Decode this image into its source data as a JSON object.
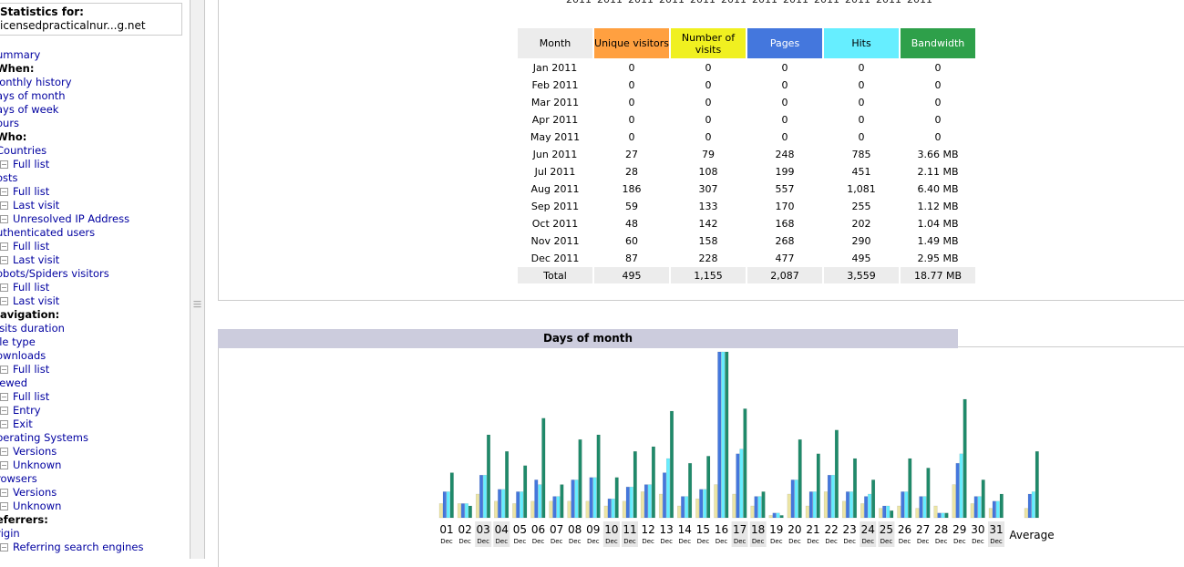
{
  "sidebar": {
    "stats_label": "Statistics for:",
    "site": "icensedpracticalnur...g.net",
    "menu": [
      {
        "text": "ummary",
        "type": "link"
      },
      {
        "text": "When:",
        "type": "head"
      },
      {
        "text": "lonthly history",
        "type": "link"
      },
      {
        "text": "ays of month",
        "type": "link"
      },
      {
        "text": "ays of week",
        "type": "link"
      },
      {
        "text": "ours",
        "type": "link"
      },
      {
        "text": "Who:",
        "type": "head"
      },
      {
        "text": "Countries",
        "type": "link"
      },
      {
        "text": "Full list",
        "type": "sub"
      },
      {
        "text": "osts",
        "type": "link"
      },
      {
        "text": "Full list",
        "type": "sub"
      },
      {
        "text": "Last visit",
        "type": "sub"
      },
      {
        "text": "Unresolved IP Address",
        "type": "sub"
      },
      {
        "text": "uthenticated users",
        "type": "link"
      },
      {
        "text": "Full list",
        "type": "sub"
      },
      {
        "text": "Last visit",
        "type": "sub"
      },
      {
        "text": "obots/Spiders visitors",
        "type": "link"
      },
      {
        "text": "Full list",
        "type": "sub"
      },
      {
        "text": "Last visit",
        "type": "sub"
      },
      {
        "text": "lavigation:",
        "type": "head"
      },
      {
        "text": "isits duration",
        "type": "link"
      },
      {
        "text": "ile type",
        "type": "link"
      },
      {
        "text": "ownloads",
        "type": "link"
      },
      {
        "text": "Full list",
        "type": "sub"
      },
      {
        "text": "iewed",
        "type": "link"
      },
      {
        "text": "Full list",
        "type": "sub"
      },
      {
        "text": "Entry",
        "type": "sub"
      },
      {
        "text": "Exit",
        "type": "sub"
      },
      {
        "text": "perating Systems",
        "type": "link"
      },
      {
        "text": "Versions",
        "type": "sub"
      },
      {
        "text": "Unknown",
        "type": "sub"
      },
      {
        "text": "rowsers",
        "type": "link"
      },
      {
        "text": "Versions",
        "type": "sub"
      },
      {
        "text": "Unknown",
        "type": "sub"
      },
      {
        "text": "eferrers:",
        "type": "head"
      },
      {
        "text": "rigin",
        "type": "link"
      },
      {
        "text": "Referring search engines",
        "type": "sub"
      }
    ]
  },
  "top_years": [
    "2011",
    "2011",
    "2011",
    "2011",
    "2011",
    "2011",
    "2011",
    "2011",
    "2011",
    "2011",
    "2011",
    "2011"
  ],
  "monthly": {
    "headers": [
      {
        "label": "Month",
        "color": "#ececec"
      },
      {
        "label": "Unique visitors",
        "color": "#ffa040"
      },
      {
        "label": "Number of visits",
        "color": "#f0f020"
      },
      {
        "label": "Pages",
        "color": "#4477dd"
      },
      {
        "label": "Hits",
        "color": "#66eeff"
      },
      {
        "label": "Bandwidth",
        "color": "#2ea04a"
      }
    ],
    "rows": [
      [
        "Jan 2011",
        "0",
        "0",
        "0",
        "0",
        "0"
      ],
      [
        "Feb 2011",
        "0",
        "0",
        "0",
        "0",
        "0"
      ],
      [
        "Mar 2011",
        "0",
        "0",
        "0",
        "0",
        "0"
      ],
      [
        "Apr 2011",
        "0",
        "0",
        "0",
        "0",
        "0"
      ],
      [
        "May 2011",
        "0",
        "0",
        "0",
        "0",
        "0"
      ],
      [
        "Jun 2011",
        "27",
        "79",
        "248",
        "785",
        "3.66 MB"
      ],
      [
        "Jul 2011",
        "28",
        "108",
        "199",
        "451",
        "2.11 MB"
      ],
      [
        "Aug 2011",
        "186",
        "307",
        "557",
        "1,081",
        "6.40 MB"
      ],
      [
        "Sep 2011",
        "59",
        "133",
        "170",
        "255",
        "1.12 MB"
      ],
      [
        "Oct 2011",
        "48",
        "142",
        "168",
        "202",
        "1.04 MB"
      ],
      [
        "Nov 2011",
        "60",
        "158",
        "268",
        "290",
        "1.49 MB"
      ],
      [
        "Dec 2011",
        "87",
        "228",
        "477",
        "495",
        "2.95 MB"
      ]
    ],
    "total": [
      "Total",
      "495",
      "1,155",
      "2,087",
      "3,559",
      "18.77 MB"
    ]
  },
  "days_section": {
    "title": "Days of month"
  },
  "chart_data": {
    "type": "bar",
    "categories": [
      "01",
      "02",
      "03",
      "04",
      "05",
      "06",
      "07",
      "08",
      "09",
      "10",
      "11",
      "12",
      "13",
      "14",
      "15",
      "16",
      "17",
      "18",
      "19",
      "20",
      "21",
      "22",
      "23",
      "24",
      "25",
      "26",
      "27",
      "28",
      "29",
      "30",
      "31"
    ],
    "month_label": "Dec",
    "weekend_days": [
      "03",
      "04",
      "10",
      "11",
      "17",
      "18",
      "24",
      "25",
      "31"
    ],
    "series": [
      {
        "name": "Number of visits",
        "color": "#ece5a5",
        "values": [
          6,
          6,
          10,
          7,
          6,
          7,
          7,
          7,
          7,
          5,
          7,
          11,
          10,
          5,
          8,
          14,
          10,
          5,
          1,
          10,
          5,
          11,
          7,
          6,
          4,
          5,
          4,
          5,
          14,
          6,
          4
        ]
      },
      {
        "name": "Pages",
        "color": "#4477dd",
        "values": [
          11,
          6,
          18,
          12,
          11,
          16,
          9,
          16,
          17,
          8,
          13,
          14,
          19,
          9,
          12,
          70,
          27,
          9,
          2,
          16,
          11,
          18,
          11,
          9,
          5,
          11,
          9,
          2,
          23,
          9,
          7
        ]
      },
      {
        "name": "Hits",
        "color": "#66eeff",
        "values": [
          11,
          6,
          18,
          12,
          11,
          14,
          9,
          16,
          17,
          8,
          13,
          14,
          25,
          9,
          12,
          70,
          29,
          9,
          2,
          16,
          11,
          18,
          11,
          10,
          5,
          11,
          9,
          2,
          27,
          9,
          7
        ]
      },
      {
        "name": "Bandwidth",
        "color": "#1f8a6a",
        "values": [
          19,
          5,
          35,
          28,
          22,
          42,
          14,
          33,
          35,
          17,
          28,
          30,
          45,
          23,
          26,
          70,
          46,
          11,
          1,
          33,
          27,
          37,
          25,
          16,
          3,
          25,
          21,
          2,
          50,
          16,
          10
        ]
      }
    ],
    "average": {
      "label": "Average",
      "values": [
        4,
        10,
        11,
        28
      ]
    }
  }
}
